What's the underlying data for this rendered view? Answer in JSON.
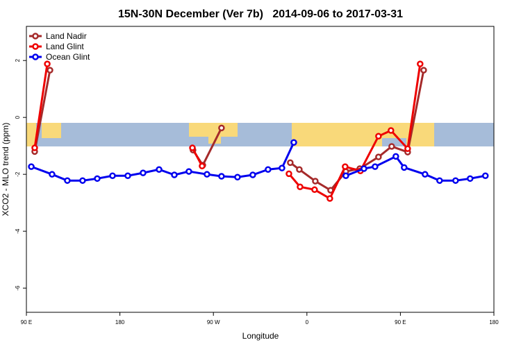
{
  "chart_data": {
    "type": "line",
    "title": "15N-30N December (Ver 7b)   2014-09-06 to 2017-03-31",
    "xlabel": "Longitude",
    "ylabel": "XCO2 - MLO trend (ppm)",
    "xlim": [
      90,
      540
    ],
    "ylim": [
      -6.85,
      3.2
    ],
    "xticks": [
      {
        "value": 90,
        "label": "90 E"
      },
      {
        "value": 180,
        "label": "180"
      },
      {
        "value": 270,
        "label": "90 W"
      },
      {
        "value": 360,
        "label": "0"
      },
      {
        "value": 450,
        "label": "90 E"
      },
      {
        "value": 540,
        "label": "180"
      }
    ],
    "yticks": [
      2,
      0,
      -2,
      -4,
      -6
    ],
    "legend": "top-left",
    "series": [
      {
        "name": "Land Nadir",
        "color": "#a52a2a",
        "x": [
          98,
          112.7,
          null,
          250.4,
          259.8,
          277.8,
          null,
          344,
          352.7,
          368.1,
          382.8,
          397.5,
          410.9,
          428.9,
          441.6,
          457,
          472.4
        ],
        "values": [
          -1.2,
          1.66,
          null,
          -1.15,
          -1.68,
          -0.37,
          null,
          -1.59,
          -1.83,
          -2.24,
          -2.56,
          -1.9,
          -1.8,
          -1.39,
          -1.02,
          -1.22,
          1.66
        ]
      },
      {
        "name": "Land Glint",
        "color": "#ee0000",
        "x": [
          98,
          110.1,
          null,
          249.8,
          259.1,
          null,
          342.7,
          353.4,
          367.4,
          382.1,
          396.8,
          411.5,
          428.9,
          440.9,
          457,
          469
        ],
        "values": [
          -1.07,
          1.88,
          null,
          -1.07,
          -1.71,
          null,
          -1.98,
          -2.44,
          -2.54,
          -2.85,
          -1.73,
          -1.88,
          -0.66,
          -0.46,
          -1.1,
          1.88
        ]
      },
      {
        "name": "Ocean Glint",
        "color": "#0000ee",
        "x": [
          94.7,
          114.7,
          129.4,
          144.1,
          158.2,
          172.9,
          187.6,
          202.3,
          217.7,
          232.4,
          246.4,
          263.8,
          277.8,
          293.2,
          307.9,
          322.6,
          336,
          347.4,
          null,
          397.5,
          414.9,
          425.6,
          445.6,
          453.6,
          473.7,
          487.7,
          503.1,
          517.1,
          531.8
        ],
        "values": [
          -1.73,
          -2.0,
          -2.22,
          -2.22,
          -2.15,
          -2.05,
          -2.05,
          -1.95,
          -1.83,
          -2.02,
          -1.9,
          -2.0,
          -2.07,
          -2.1,
          -2.02,
          -1.83,
          -1.78,
          -0.88,
          null,
          -2.05,
          -1.8,
          -1.73,
          -1.37,
          -1.76,
          -2.0,
          -2.22,
          -2.22,
          -2.15,
          -2.05
        ]
      }
    ]
  }
}
